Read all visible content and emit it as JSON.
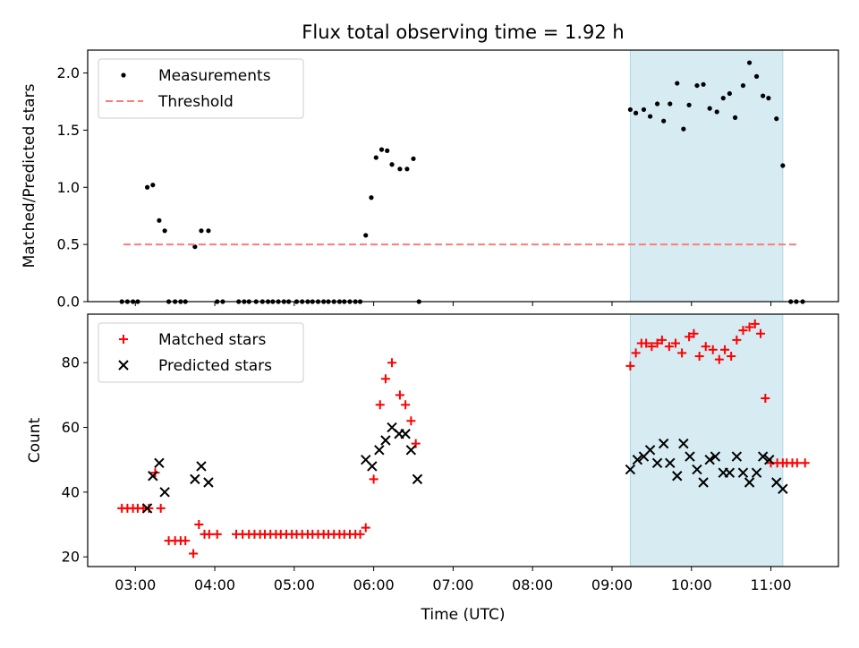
{
  "chart_data": {
    "type": "scatter",
    "title": "Flux total observing time = 1.92 h",
    "xlabel": "Time (UTC)",
    "x_unit": "hours UTC",
    "xlim": [
      2.4,
      11.85
    ],
    "xticks": [
      3,
      4,
      5,
      6,
      7,
      8,
      9,
      10,
      11
    ],
    "xtick_labels": [
      "03:00",
      "04:00",
      "05:00",
      "06:00",
      "07:00",
      "08:00",
      "09:00",
      "10:00",
      "11:00"
    ],
    "shaded_region": {
      "x": [
        9.23,
        11.15
      ],
      "color": "#add8e6"
    },
    "panels": [
      {
        "ylabel": "Matched/Predicted stars",
        "ylim": [
          0,
          2.2
        ],
        "yticks": [
          0.0,
          0.5,
          1.0,
          1.5,
          2.0
        ],
        "ytick_labels": [
          "0.0",
          "0.5",
          "1.0",
          "1.5",
          "2.0"
        ],
        "legend": "top-left",
        "series": [
          {
            "name": "Measurements",
            "marker": "dot",
            "color": "#000000",
            "x": [
              2.83,
              2.9,
              2.97,
              3.03,
              3.15,
              3.22,
              3.3,
              3.37,
              3.42,
              3.5,
              3.57,
              3.63,
              3.75,
              3.83,
              3.92,
              4.03,
              4.1,
              4.3,
              4.37,
              4.43,
              4.52,
              4.6,
              4.67,
              4.73,
              4.8,
              4.87,
              4.93,
              5.03,
              5.1,
              5.17,
              5.23,
              5.3,
              5.37,
              5.43,
              5.5,
              5.57,
              5.63,
              5.7,
              5.77,
              5.83,
              5.9,
              5.97,
              6.03,
              6.1,
              6.17,
              6.23,
              6.33,
              6.42,
              6.5,
              6.57,
              9.23,
              9.3,
              9.4,
              9.48,
              9.57,
              9.65,
              9.73,
              9.82,
              9.9,
              9.97,
              10.07,
              10.15,
              10.23,
              10.32,
              10.4,
              10.48,
              10.55,
              10.65,
              10.73,
              10.82,
              10.9,
              10.97,
              11.07,
              11.15,
              11.25,
              11.32,
              11.4
            ],
            "y": [
              0.0,
              0.0,
              0.0,
              0.0,
              1.0,
              1.02,
              0.71,
              0.62,
              0.0,
              0.0,
              0.0,
              0.0,
              0.48,
              0.62,
              0.62,
              0.0,
              0.0,
              0.0,
              0.0,
              0.0,
              0.0,
              0.0,
              0.0,
              0.0,
              0.0,
              0.0,
              0.0,
              0.0,
              0.0,
              0.0,
              0.0,
              0.0,
              0.0,
              0.0,
              0.0,
              0.0,
              0.0,
              0.0,
              0.0,
              0.0,
              0.58,
              0.91,
              1.26,
              1.33,
              1.32,
              1.2,
              1.16,
              1.16,
              1.25,
              0.0,
              1.68,
              1.65,
              1.68,
              1.62,
              1.73,
              1.58,
              1.73,
              1.91,
              1.51,
              1.72,
              1.89,
              1.9,
              1.69,
              1.66,
              1.78,
              1.82,
              1.61,
              1.89,
              2.09,
              1.97,
              1.8,
              1.78,
              1.6,
              1.19,
              0.0,
              0.0,
              0.0
            ]
          },
          {
            "name": "Threshold",
            "marker": "dashed-line",
            "color": "#ff7b7b",
            "x": [
              2.85,
              11.35
            ],
            "y": [
              0.5,
              0.5
            ]
          }
        ]
      },
      {
        "ylabel": "Count",
        "ylim": [
          17,
          95
        ],
        "yticks": [
          20,
          40,
          60,
          80
        ],
        "ytick_labels": [
          "20",
          "40",
          "60",
          "80"
        ],
        "legend": "top-left",
        "series": [
          {
            "name": "Matched stars",
            "marker": "plus",
            "color": "#ff0000",
            "x": [
              2.83,
              2.9,
              2.97,
              3.03,
              3.1,
              3.17,
              3.25,
              3.32,
              3.42,
              3.5,
              3.57,
              3.63,
              3.73,
              3.8,
              3.87,
              3.93,
              4.03,
              4.27,
              4.35,
              4.43,
              4.5,
              4.57,
              4.63,
              4.7,
              4.77,
              4.83,
              4.9,
              4.97,
              5.03,
              5.1,
              5.17,
              5.23,
              5.3,
              5.37,
              5.43,
              5.5,
              5.57,
              5.63,
              5.7,
              5.77,
              5.83,
              5.9,
              6.0,
              6.08,
              6.15,
              6.23,
              6.33,
              6.4,
              6.47,
              6.53,
              9.23,
              9.3,
              9.37,
              9.43,
              9.5,
              9.57,
              9.63,
              9.72,
              9.8,
              9.88,
              9.97,
              10.03,
              10.1,
              10.18,
              10.27,
              10.35,
              10.42,
              10.5,
              10.57,
              10.65,
              10.73,
              10.8,
              10.87,
              10.93,
              11.0,
              11.08,
              11.15,
              11.2,
              11.27,
              11.33,
              11.43
            ],
            "y": [
              35,
              35,
              35,
              35,
              35,
              35,
              46,
              35,
              25,
              25,
              25,
              25,
              21,
              30,
              27,
              27,
              27,
              27,
              27,
              27,
              27,
              27,
              27,
              27,
              27,
              27,
              27,
              27,
              27,
              27,
              27,
              27,
              27,
              27,
              27,
              27,
              27,
              27,
              27,
              27,
              27,
              29,
              44,
              67,
              75,
              80,
              70,
              67,
              62,
              55,
              79,
              83,
              86,
              86,
              85,
              86,
              87,
              85,
              86,
              83,
              88,
              89,
              82,
              85,
              84,
              81,
              84,
              82,
              87,
              90,
              91,
              92,
              89,
              69,
              49,
              49,
              49,
              49,
              49,
              49,
              49
            ]
          },
          {
            "name": "Predicted stars",
            "marker": "x",
            "color": "#000000",
            "x": [
              3.15,
              3.22,
              3.3,
              3.37,
              3.75,
              3.83,
              3.92,
              5.9,
              5.98,
              6.07,
              6.15,
              6.23,
              6.32,
              6.4,
              6.47,
              6.55,
              9.23,
              9.32,
              9.4,
              9.48,
              9.57,
              9.65,
              9.73,
              9.82,
              9.9,
              9.98,
              10.07,
              10.15,
              10.23,
              10.3,
              10.4,
              10.48,
              10.57,
              10.65,
              10.73,
              10.82,
              10.9,
              10.98,
              11.07,
              11.15
            ],
            "y": [
              35,
              45,
              49,
              40,
              44,
              48,
              43,
              50,
              48,
              53,
              56,
              60,
              58,
              58,
              53,
              44,
              47,
              50,
              51,
              53,
              49,
              55,
              49,
              45,
              55,
              51,
              47,
              43,
              50,
              51,
              46,
              46,
              51,
              46,
              43,
              46,
              51,
              50,
              43,
              41
            ]
          }
        ]
      }
    ]
  }
}
